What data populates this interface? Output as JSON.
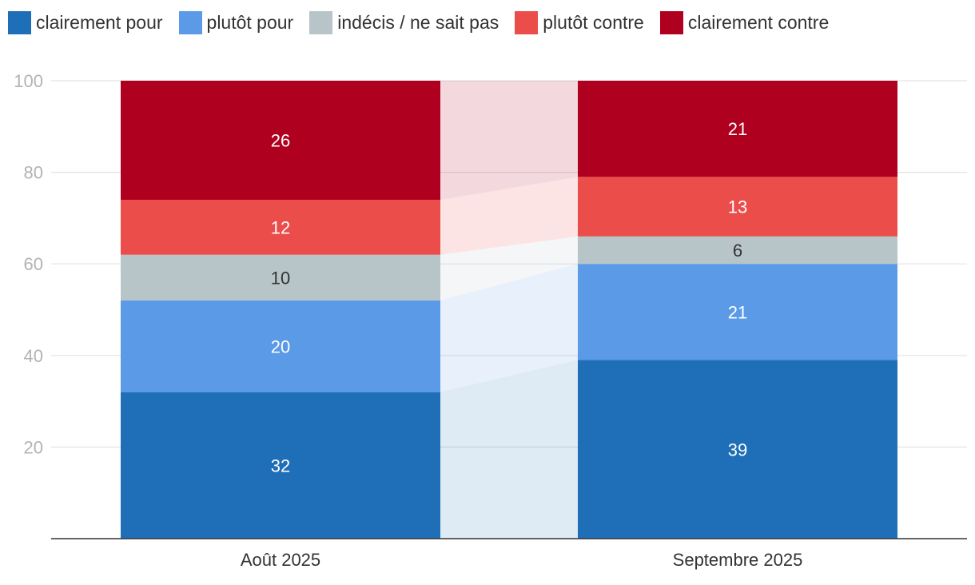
{
  "chart_data": {
    "type": "bar",
    "stacked": true,
    "categories": [
      "Août 2025",
      "Septembre 2025"
    ],
    "series": [
      {
        "name": "clairement pour",
        "color": "#1f6fb8",
        "label_color": "#ffffff",
        "values": [
          32,
          39
        ]
      },
      {
        "name": "plutôt pour",
        "color": "#5b9ae6",
        "label_color": "#ffffff",
        "values": [
          20,
          21
        ]
      },
      {
        "name": "indécis / ne sait pas",
        "color": "#b8c5c8",
        "label_color": "#333333",
        "values": [
          10,
          6
        ]
      },
      {
        "name": "plutôt contre",
        "color": "#ea4d4a",
        "label_color": "#ffffff",
        "values": [
          12,
          13
        ]
      },
      {
        "name": "clairement contre",
        "color": "#b0001f",
        "label_color": "#ffffff",
        "values": [
          26,
          21
        ]
      }
    ],
    "y_ticks": [
      20,
      40,
      60,
      80,
      100
    ],
    "ylim": [
      0,
      100
    ],
    "grid": true,
    "legend_position": "top-left",
    "title": "",
    "xlabel": "",
    "ylabel": ""
  }
}
